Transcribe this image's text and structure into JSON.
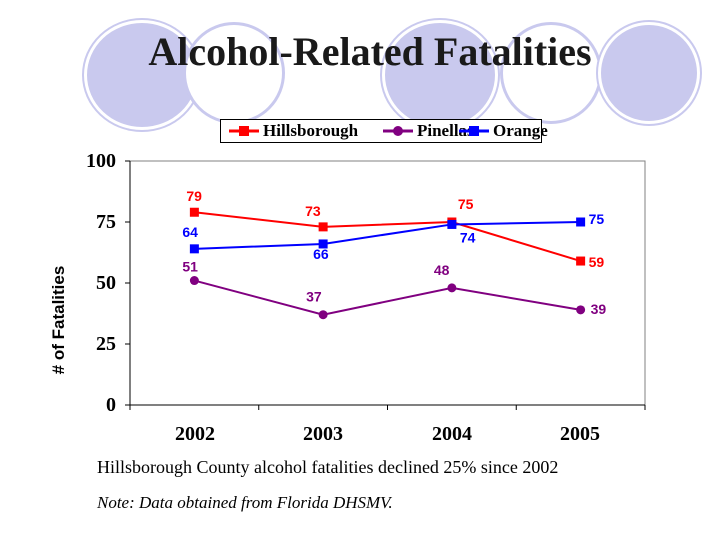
{
  "title": "Alcohol-Related Fatalities",
  "caption": "Hillsborough County alcohol fatalities declined 25% since 2002",
  "note": "Note:  Data obtained from Florida DHSMV.",
  "chart_data": {
    "type": "line",
    "title": "",
    "xlabel": "",
    "ylabel": "# of Fatalities",
    "categories": [
      "2002",
      "2003",
      "2004",
      "2005"
    ],
    "ylim": [
      0,
      100
    ],
    "yticks": [
      "0",
      "25",
      "50",
      "75",
      "100"
    ],
    "grid": false,
    "legend_position": "top",
    "series": [
      {
        "name": "Hillsborough",
        "color": "#ff0000",
        "marker": "square",
        "values": [
          79,
          73,
          75,
          59
        ],
        "labels": [
          "79",
          "73",
          "75",
          "59"
        ]
      },
      {
        "name": "Pinellas",
        "color": "#800080",
        "marker": "circle",
        "values": [
          51,
          37,
          48,
          39
        ],
        "labels": [
          "51",
          "37",
          "48",
          "39"
        ]
      },
      {
        "name": "Orange",
        "color": "#0000ff",
        "marker": "square",
        "values": [
          64,
          66,
          74,
          75
        ],
        "labels": [
          "64",
          "66",
          "74",
          "75"
        ]
      }
    ]
  }
}
